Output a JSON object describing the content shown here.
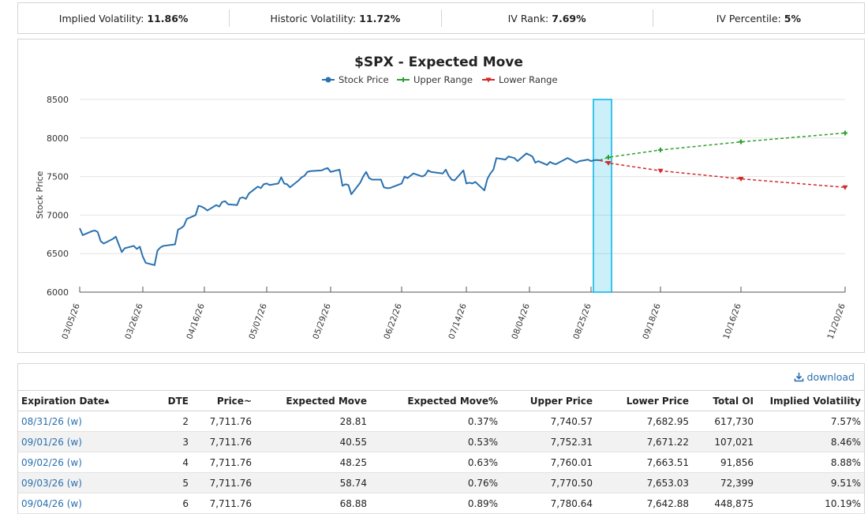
{
  "stats": [
    {
      "label": "Implied Volatility:",
      "value": "11.86%"
    },
    {
      "label": "Historic Volatility:",
      "value": "11.72%"
    },
    {
      "label": "IV Rank:",
      "value": "7.69%"
    },
    {
      "label": "IV Percentile:",
      "value": "5%"
    }
  ],
  "chart_data": {
    "type": "line",
    "title": "$SPX - Expected Move",
    "ylabel": "Stock Price",
    "ylim": [
      6000,
      8500
    ],
    "yticks": [
      6000,
      6500,
      7000,
      7500,
      8000,
      8500
    ],
    "legend_position": "top-center",
    "x_tick_labels": [
      "03/05/26",
      "03/26/26",
      "04/16/26",
      "05/07/26",
      "05/29/26",
      "06/22/26",
      "07/14/26",
      "08/04/26",
      "08/25/26",
      "09/18/26",
      "10/16/26",
      "11/20/26"
    ],
    "series": [
      {
        "name": "Stock Price",
        "color": "#2a71b0",
        "dates": [
          "03/05/26",
          "03/06/26",
          "03/09/26",
          "03/10/26",
          "03/11/26",
          "03/12/26",
          "03/13/26",
          "03/16/26",
          "03/17/26",
          "03/18/26",
          "03/19/26",
          "03/20/26",
          "03/23/26",
          "03/24/26",
          "03/25/26",
          "03/26/26",
          "03/27/26",
          "03/30/26",
          "03/31/26",
          "04/01/26",
          "04/02/26",
          "04/06/26",
          "04/07/26",
          "04/08/26",
          "04/09/26",
          "04/10/26",
          "04/13/26",
          "04/14/26",
          "04/15/26",
          "04/16/26",
          "04/17/26",
          "04/20/26",
          "04/21/26",
          "04/22/26",
          "04/23/26",
          "04/24/26",
          "04/27/26",
          "04/28/26",
          "04/29/26",
          "04/30/26",
          "05/01/26",
          "05/04/26",
          "05/05/26",
          "05/06/26",
          "05/07/26",
          "05/08/26",
          "05/11/26",
          "05/12/26",
          "05/13/26",
          "05/14/26",
          "05/15/26",
          "05/18/26",
          "05/19/26",
          "05/20/26",
          "05/21/26",
          "05/22/26",
          "05/26/26",
          "05/27/26",
          "05/28/26",
          "05/29/26",
          "06/01/26",
          "06/02/26",
          "06/03/26",
          "06/04/26",
          "06/05/26",
          "06/08/26",
          "06/09/26",
          "06/10/26",
          "06/11/26",
          "06/12/26",
          "06/15/26",
          "06/16/26",
          "06/17/26",
          "06/18/26",
          "06/22/26",
          "06/23/26",
          "06/24/26",
          "06/25/26",
          "06/26/26",
          "06/29/26",
          "06/30/26",
          "07/01/26",
          "07/02/26",
          "07/06/26",
          "07/07/26",
          "07/08/26",
          "07/09/26",
          "07/10/26",
          "07/13/26",
          "07/14/26",
          "07/15/26",
          "07/16/26",
          "07/17/26",
          "07/20/26",
          "07/21/26",
          "07/22/26",
          "07/23/26",
          "07/24/26",
          "07/27/26",
          "07/28/26",
          "07/29/26",
          "07/30/26",
          "07/31/26",
          "08/03/26",
          "08/04/26",
          "08/05/26",
          "08/06/26",
          "08/07/26",
          "08/10/26",
          "08/11/26",
          "08/12/26",
          "08/13/26",
          "08/14/26",
          "08/17/26",
          "08/18/26",
          "08/19/26",
          "08/20/26",
          "08/21/26",
          "08/24/26",
          "08/25/26",
          "08/26/26",
          "08/27/26",
          "08/28/26"
        ],
        "values": [
          6830,
          6740,
          6790,
          6800,
          6780,
          6660,
          6630,
          6690,
          6720,
          6620,
          6520,
          6570,
          6600,
          6560,
          6590,
          6460,
          6380,
          6350,
          6540,
          6580,
          6600,
          6620,
          6810,
          6830,
          6860,
          6950,
          7000,
          7120,
          7110,
          7090,
          7060,
          7130,
          7110,
          7170,
          7180,
          7140,
          7130,
          7220,
          7230,
          7210,
          7280,
          7370,
          7350,
          7400,
          7410,
          7390,
          7410,
          7490,
          7410,
          7400,
          7360,
          7450,
          7490,
          7510,
          7560,
          7570,
          7580,
          7600,
          7610,
          7560,
          7590,
          7380,
          7400,
          7390,
          7270,
          7420,
          7500,
          7560,
          7480,
          7460,
          7460,
          7360,
          7350,
          7350,
          7410,
          7500,
          7480,
          7510,
          7540,
          7500,
          7520,
          7580,
          7560,
          7540,
          7590,
          7510,
          7460,
          7450,
          7580,
          7410,
          7420,
          7410,
          7430,
          7320,
          7470,
          7540,
          7590,
          7740,
          7720,
          7760,
          7750,
          7740,
          7700,
          7800,
          7780,
          7760,
          7680,
          7700,
          7650,
          7690,
          7670,
          7660,
          7680,
          7740,
          7720,
          7700,
          7680,
          7700,
          7720,
          7700,
          7711,
          7715,
          7711
        ]
      },
      {
        "name": "Upper Range",
        "color": "#2e9f2e",
        "dates": [
          "08/31/26",
          "09/18/26",
          "10/16/26",
          "11/20/26"
        ],
        "values": [
          7750,
          7845,
          7950,
          8065
        ]
      },
      {
        "name": "Lower Range",
        "color": "#d22a2a",
        "dates": [
          "08/31/26",
          "09/18/26",
          "10/16/26",
          "11/20/26"
        ],
        "values": [
          7675,
          7575,
          7470,
          7360
        ]
      }
    ],
    "highlight_band": {
      "from": "08/28/26",
      "to": "08/31/26",
      "color": "#00b4e6",
      "ylim": [
        6000,
        8500
      ]
    }
  },
  "download_label": "download",
  "table": {
    "columns": [
      "Expiration Date",
      "DTE",
      "Price~",
      "Expected Move",
      "Expected Move%",
      "Upper Price",
      "Lower Price",
      "Total OI",
      "Implied Volatility"
    ],
    "sort_indicator": "▲",
    "rows": [
      [
        "08/31/26 (w)",
        "2",
        "7,711.76",
        "28.81",
        "0.37%",
        "7,740.57",
        "7,682.95",
        "617,730",
        "7.57%"
      ],
      [
        "09/01/26 (w)",
        "3",
        "7,711.76",
        "40.55",
        "0.53%",
        "7,752.31",
        "7,671.22",
        "107,021",
        "8.46%"
      ],
      [
        "09/02/26 (w)",
        "4",
        "7,711.76",
        "48.25",
        "0.63%",
        "7,760.01",
        "7,663.51",
        "91,856",
        "8.88%"
      ],
      [
        "09/03/26 (w)",
        "5",
        "7,711.76",
        "58.74",
        "0.76%",
        "7,770.50",
        "7,653.03",
        "72,399",
        "9.51%"
      ],
      [
        "09/04/26 (w)",
        "6",
        "7,711.76",
        "68.88",
        "0.89%",
        "7,780.64",
        "7,642.88",
        "448,875",
        "10.19%"
      ]
    ]
  }
}
